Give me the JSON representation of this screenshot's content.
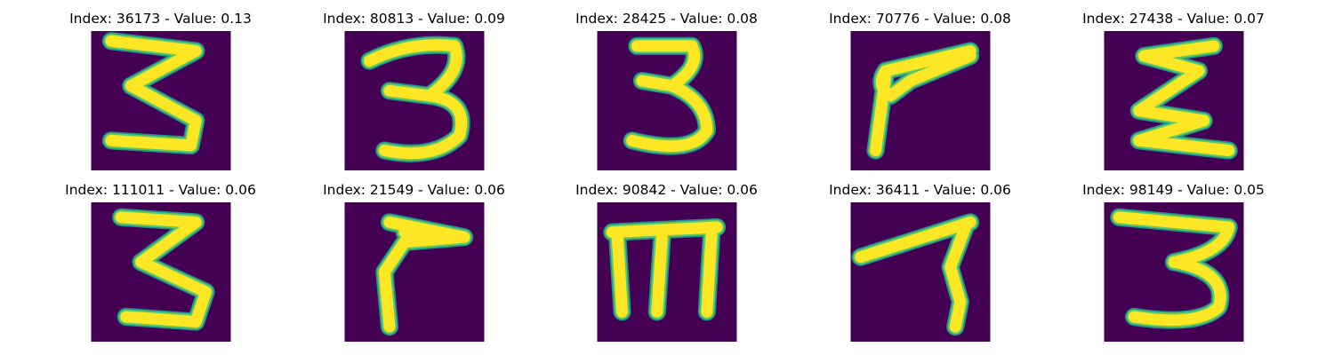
{
  "panels": [
    {
      "index": "36173",
      "value": "0.13",
      "title": "Index: 36173 - Value: 0.13",
      "glyph": "three-zigzag"
    },
    {
      "index": "80813",
      "value": "0.09",
      "title": "Index: 80813 - Value: 0.09",
      "glyph": "three-rounded"
    },
    {
      "index": "28425",
      "value": "0.08",
      "title": "Index: 28425 - Value: 0.08",
      "glyph": "three-rounded"
    },
    {
      "index": "70776",
      "value": "0.08",
      "title": "Index: 70776 - Value: 0.08",
      "glyph": "seven-like"
    },
    {
      "index": "27438",
      "value": "0.07",
      "title": "Index: 27438 - Value: 0.07",
      "glyph": "epsilon-like"
    },
    {
      "index": "111011",
      "value": "0.06",
      "title": "Index: 111011 - Value: 0.06",
      "glyph": "three-zigzag"
    },
    {
      "index": "21549",
      "value": "0.06",
      "title": "Index: 21549 - Value: 0.06",
      "glyph": "hook-like"
    },
    {
      "index": "90842",
      "value": "0.06",
      "title": "Index: 90842 - Value: 0.06",
      "glyph": "m-like"
    },
    {
      "index": "36411",
      "value": "0.06",
      "title": "Index: 36411 - Value: 0.06",
      "glyph": "seven-like"
    },
    {
      "index": "98149",
      "value": "0.05",
      "title": "Index: 98149 - Value: 0.05",
      "glyph": "three-rounded"
    }
  ],
  "colors": {
    "background": "#440154",
    "edge": "#21918c",
    "mid": "#5ec962",
    "stroke": "#fde725"
  }
}
